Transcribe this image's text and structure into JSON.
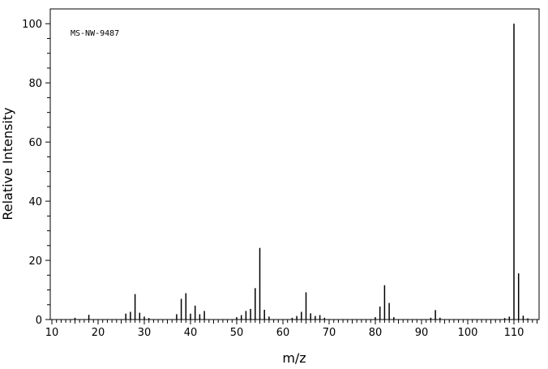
{
  "chart_data": {
    "type": "bar",
    "title": "",
    "annotation": "MS-NW-9487",
    "xlabel": "m/z",
    "ylabel": "Relative Intensity",
    "xlim": [
      10,
      115
    ],
    "ylim": [
      0,
      105
    ],
    "x_ticks": [
      10,
      20,
      30,
      40,
      50,
      60,
      70,
      80,
      90,
      100,
      110
    ],
    "y_ticks": [
      0,
      20,
      40,
      60,
      80,
      100
    ],
    "grid": false,
    "x": [
      15,
      18,
      26,
      27,
      28,
      29,
      30,
      31,
      37,
      38,
      39,
      40,
      41,
      42,
      43,
      50,
      51,
      52,
      53,
      54,
      55,
      56,
      57,
      62,
      63,
      64,
      65,
      66,
      67,
      68,
      69,
      80,
      81,
      82,
      83,
      84,
      92,
      93,
      94,
      108,
      109,
      110,
      111,
      112,
      113
    ],
    "values": [
      0.6,
      1.6,
      2.0,
      2.6,
      8.6,
      2.3,
      1.0,
      0.5,
      1.8,
      7.0,
      8.9,
      2.0,
      4.7,
      1.8,
      2.9,
      0.8,
      1.5,
      2.9,
      3.6,
      10.6,
      24.2,
      3.3,
      1.0,
      0.6,
      1.2,
      2.6,
      9.2,
      2.1,
      1.2,
      1.5,
      0.6,
      0.8,
      4.4,
      11.6,
      5.6,
      0.8,
      0.6,
      3.2,
      0.6,
      0.5,
      1.0,
      100,
      15.6,
      1.3,
      0.4
    ]
  }
}
